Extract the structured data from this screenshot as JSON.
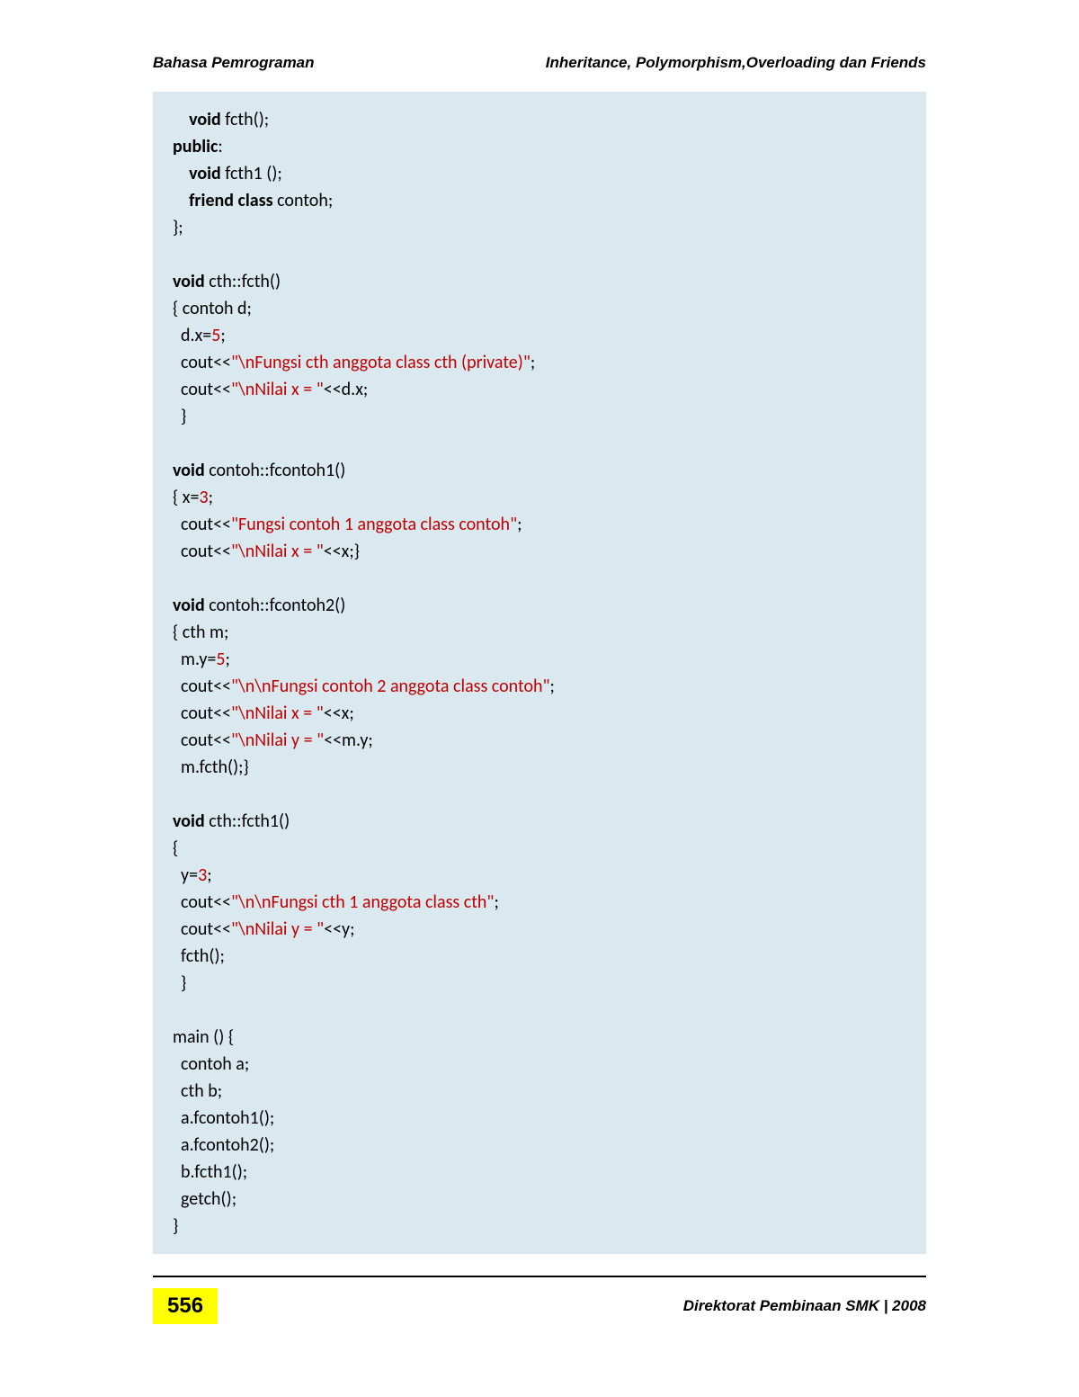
{
  "header": {
    "left": "Bahasa Pemrograman",
    "right": "Inheritance, Polymorphism,Overloading dan Friends"
  },
  "code": {
    "line1_indent": "    ",
    "void": "void",
    "fcth_decl": " fcth();",
    "public": "public",
    "colon": ":",
    "fcth1_decl": " fcth1 ();",
    "friend_class": "friend class",
    "contoh_decl": " contoh;",
    "close_brace_semi": "};",
    "cth_fcth_sig": " cth::fcth()",
    "open_contoh_d": "{ contoh d;",
    "dx_eq": "  d.x=",
    "five": "5",
    "semicolon": ";",
    "cout1": "  cout<<",
    "str1": "\"\\nFungsi cth anggota class cth (private)\"",
    "cout2": "  cout<<",
    "str2": "\"\\nNilai x = \"",
    "ddx": "<<d.x;",
    "indent_close": "  }",
    "contoh_fcontoh1_sig": " contoh::fcontoh1()",
    "open_x3": "{ x=",
    "three": "3",
    "cout3": "  cout<<",
    "str3": "\"Fungsi contoh 1 anggota class contoh\"",
    "cout4": "  cout<<",
    "str4": "\"\\nNilai x = \"",
    "ltlt_x_close": "<<x;}",
    "contoh_fcontoh2_sig": " contoh::fcontoh2()",
    "open_cth_m": "{ cth m;",
    "my_eq": "  m.y=",
    "cout5": "  cout<<",
    "str5": "\"\\n\\nFungsi contoh 2 anggota class contoh\"",
    "cout6": "  cout<<",
    "ltlt_x": "<<x;",
    "cout7": "  cout<<",
    "str6": "\"\\nNilai y = \"",
    "ltlt_my": "<<m.y;",
    "mfcth": "  m.fcth();}",
    "cth_fcth1_sig": " cth::fcth1()",
    "open_brace": "{",
    "y_eq": "  y=",
    "cout8": "  cout<<",
    "str7": "\"\\n\\nFungsi cth 1 anggota class cth\"",
    "cout9": "  cout<<",
    "ltlt_y": "<<y;",
    "fcth_call": "  fcth();",
    "main_sig": "main () {",
    "contoh_a": "  contoh a;",
    "cth_b": "  cth b;",
    "a_f1": "  a.fcontoh1();",
    "a_f2": "  a.fcontoh2();",
    "b_f1": "  b.fcth1();",
    "getch": "  getch();",
    "close_brace": "}"
  },
  "footer": {
    "page_number": "556",
    "right": "Direktorat Pembinaan SMK | 2008"
  },
  "colors": {
    "code_bg": "#d9e9ef",
    "string_color": "#c00000",
    "highlight": "#ffff00"
  }
}
